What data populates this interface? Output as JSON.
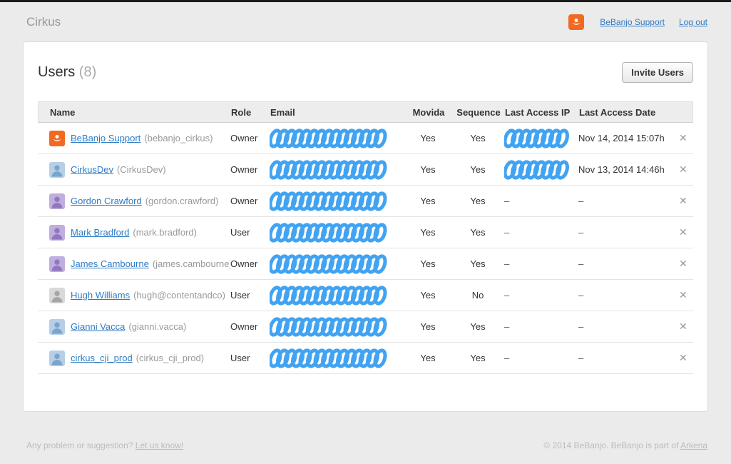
{
  "page": {
    "brand": "Cirkus"
  },
  "topnav": {
    "support_label": "BeBanjo Support",
    "logout_label": "Log out"
  },
  "users_panel": {
    "title": "Users",
    "count": "(8)",
    "invite_button": "Invite Users"
  },
  "table": {
    "headers": [
      "Name",
      "Role",
      "Email",
      "Movida",
      "Sequence",
      "Last Access IP",
      "Last Access Date"
    ],
    "delete_icon": "✕",
    "empty_value": "–",
    "rows": [
      {
        "name": "BeBanjo Support",
        "username": "(bebanjo_cirkus)",
        "role": "Owner",
        "email_redacted": true,
        "movida": "Yes",
        "sequence": "Yes",
        "ip_redacted": true,
        "ip": "",
        "date": "Nov 14, 2014 15:07h",
        "avatar": "bebanjo"
      },
      {
        "name": "CirkusDev",
        "username": "(CirkusDev)",
        "role": "Owner",
        "email_redacted": true,
        "movida": "Yes",
        "sequence": "Yes",
        "ip_redacted": true,
        "ip": "",
        "date": "Nov 13, 2014 14:46h",
        "avatar": "blue"
      },
      {
        "name": "Gordon Crawford",
        "username": "(gordon.crawford)",
        "role": "Owner",
        "email_redacted": true,
        "movida": "Yes",
        "sequence": "Yes",
        "ip_redacted": false,
        "ip": "–",
        "date": "–",
        "avatar": "purple"
      },
      {
        "name": "Mark Bradford",
        "username": "(mark.bradford)",
        "role": "User",
        "email_redacted": true,
        "movida": "Yes",
        "sequence": "Yes",
        "ip_redacted": false,
        "ip": "–",
        "date": "–",
        "avatar": "purple"
      },
      {
        "name": "James Cambourne",
        "username": "(james.cambourne)",
        "role": "Owner",
        "email_redacted": true,
        "movida": "Yes",
        "sequence": "Yes",
        "ip_redacted": false,
        "ip": "–",
        "date": "–",
        "avatar": "purple"
      },
      {
        "name": "Hugh Williams",
        "username": "(hugh@contentandco)",
        "role": "User",
        "email_redacted": true,
        "movida": "Yes",
        "sequence": "No",
        "ip_redacted": false,
        "ip": "–",
        "date": "–",
        "avatar": "gray"
      },
      {
        "name": "Gianni Vacca",
        "username": "(gianni.vacca)",
        "role": "Owner",
        "email_redacted": true,
        "movida": "Yes",
        "sequence": "Yes",
        "ip_redacted": false,
        "ip": "–",
        "date": "–",
        "avatar": "blue"
      },
      {
        "name": "cirkus_cji_prod",
        "username": "(cirkus_cji_prod)",
        "role": "User",
        "email_redacted": true,
        "movida": "Yes",
        "sequence": "Yes",
        "ip_redacted": false,
        "ip": "–",
        "date": "–",
        "avatar": "blue"
      }
    ]
  },
  "footer": {
    "left_text": "Any problem or suggestion?",
    "left_link": "Let us know!",
    "right_text": "© 2014 BeBanjo. BeBanjo is part of",
    "right_link": "Arkena"
  },
  "colors": {
    "scribble_blue": "#41a3f1",
    "link_blue": "#2e7cc4",
    "brand_orange": "#f26a22",
    "avatar_blue_bg": "#b7cfe6",
    "avatar_blue_fg": "#79a4cb",
    "avatar_purple_bg": "#bfaede",
    "avatar_purple_fg": "#9177bf",
    "avatar_gray_bg": "#d9d9d9",
    "avatar_gray_fg": "#a6a6a6"
  }
}
